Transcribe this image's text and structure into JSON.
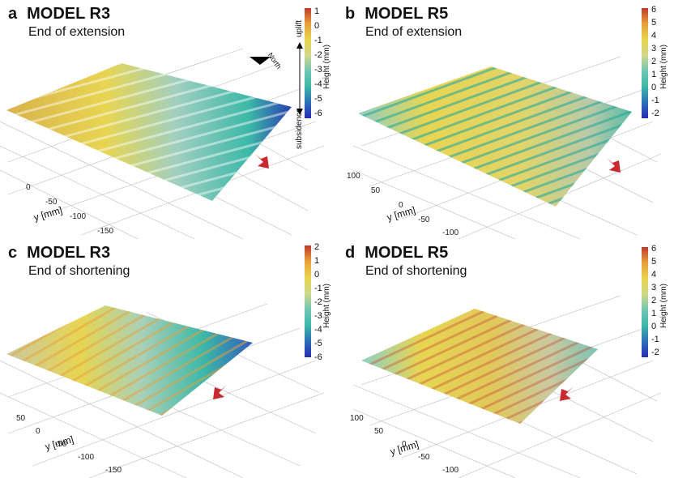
{
  "panels": [
    {
      "letter": "a",
      "model": "MODEL R3",
      "stage": "End of extension",
      "y_axis": "y [mm]",
      "ticks": [
        "0",
        "-50",
        "-100",
        "-150"
      ],
      "colorbar": {
        "title": "Height (mm)",
        "ticks": [
          "1",
          "0",
          "-1",
          "-2",
          "-3",
          "-4",
          "-5",
          "-6"
        ]
      },
      "extra": {
        "north": "North",
        "uplift": "uplift",
        "subsidence": "subsidence"
      }
    },
    {
      "letter": "b",
      "model": "MODEL R5",
      "stage": "End of extension",
      "y_axis": "y [mm]",
      "ticks": [
        "100",
        "50",
        "0",
        "-50",
        "-100"
      ],
      "colorbar": {
        "title": "Height (mm)",
        "ticks": [
          "6",
          "5",
          "4",
          "3",
          "2",
          "1",
          "0",
          "-1",
          "-2"
        ]
      }
    },
    {
      "letter": "c",
      "model": "MODEL R3",
      "stage": "End of shortening",
      "y_axis": "y [mm]",
      "ticks": [
        "50",
        "0",
        "-50",
        "-100",
        "-150"
      ],
      "colorbar": {
        "title": "Height (mm)",
        "ticks": [
          "2",
          "1",
          "0",
          "-1",
          "-2",
          "-3",
          "-4",
          "-5",
          "-6"
        ]
      }
    },
    {
      "letter": "d",
      "model": "MODEL R5",
      "stage": "End of shortening",
      "y_axis": "y [mm]",
      "ticks": [
        "100",
        "50",
        "0",
        "-50",
        "-100"
      ],
      "colorbar": {
        "title": "Height (mm)",
        "ticks": [
          "6",
          "5",
          "4",
          "3",
          "2",
          "1",
          "0",
          "-1",
          "-2"
        ]
      }
    }
  ],
  "colors": {
    "arrow": "#c8282e",
    "high": "#c0392b",
    "mid": "#e8d44d",
    "low": "#2a2ab5",
    "teal": "#3cb8a8"
  }
}
